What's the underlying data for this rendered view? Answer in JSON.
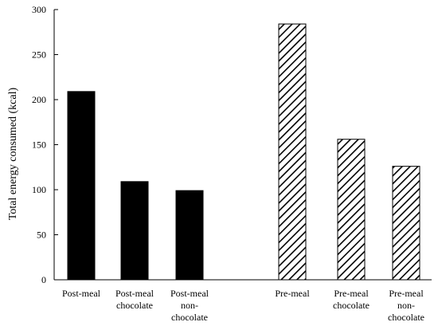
{
  "chart_data": {
    "type": "bar",
    "ylabel": "Total energy consumed (kcal)",
    "ylim": [
      0,
      300
    ],
    "yticks": [
      0,
      50,
      100,
      150,
      200,
      250,
      300
    ],
    "grid": false,
    "categories": [
      [
        "Post-meal"
      ],
      [
        "Post-meal",
        "chocolate"
      ],
      [
        "Post-meal",
        "non-",
        "chocolate"
      ],
      [
        "Pre-meal"
      ],
      [
        "Pre-meal",
        "chocolate"
      ],
      [
        "Pre-meal",
        "non-",
        "chocolate"
      ]
    ],
    "values": [
      209,
      109,
      99,
      284,
      156,
      126
    ],
    "fills": [
      "solid",
      "solid",
      "solid",
      "hatched",
      "hatched",
      "hatched"
    ],
    "colors": {
      "bar": "#000000",
      "axis": "#000000",
      "background": "#ffffff"
    }
  }
}
